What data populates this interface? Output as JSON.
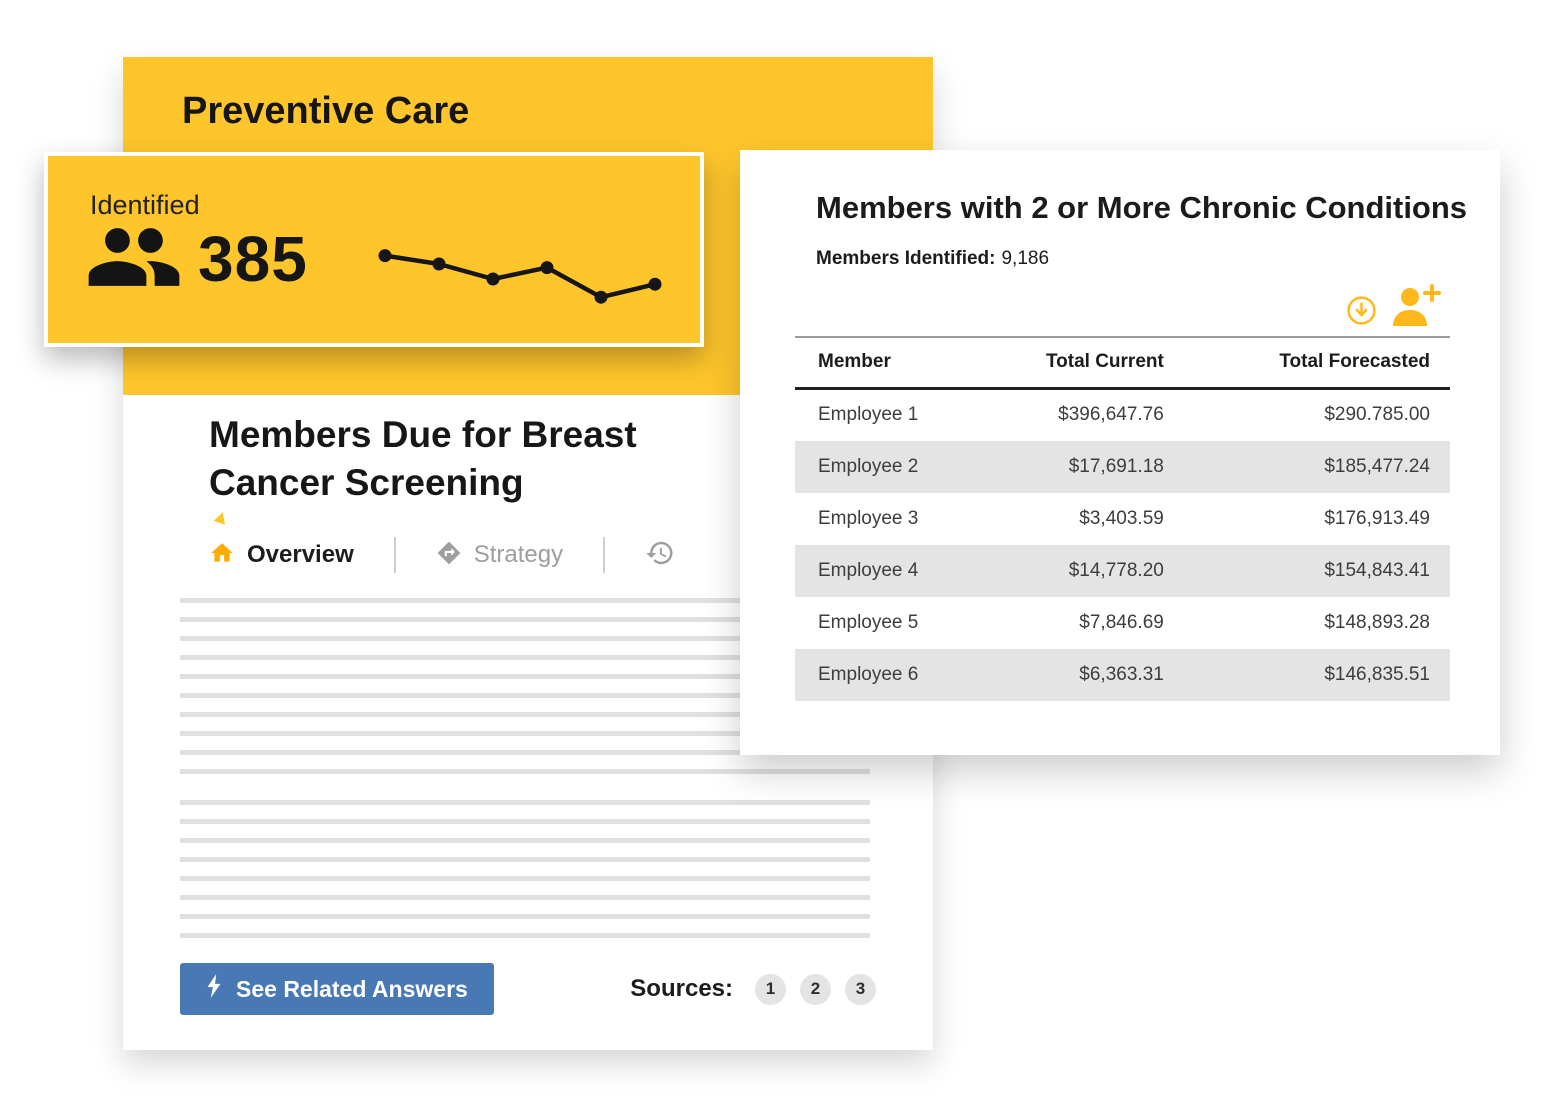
{
  "preventive_care": {
    "title": "Preventive Care"
  },
  "identified_card": {
    "label": "Identified",
    "value": "385",
    "sparkline": {
      "type": "line",
      "values": [
        93,
        77,
        48,
        70,
        13,
        38
      ]
    }
  },
  "document": {
    "title": "Members Due for Breast Cancer Screening",
    "tabs": [
      {
        "label": "Overview",
        "active": true
      },
      {
        "label": "Strategy",
        "active": false
      }
    ],
    "related_button": "See Related Answers",
    "sources_label": "Sources:",
    "sources": [
      "1",
      "2",
      "3"
    ]
  },
  "chronic_panel": {
    "title": "Members with 2 or More Chronic Conditions",
    "identified_label": "Members Identified:",
    "identified_value": "9,186",
    "table": {
      "columns": [
        "Member",
        "Total Current",
        "Total Forecasted"
      ],
      "rows": [
        [
          "Employee 1",
          "$396,647.76",
          "$290.785.00"
        ],
        [
          "Employee 2",
          "$17,691.18",
          "$185,477.24"
        ],
        [
          "Employee 3",
          "$3,403.59",
          "$176,913.49"
        ],
        [
          "Employee 4",
          "$14,778.20",
          "$154,843.41"
        ],
        [
          "Employee 5",
          "$7,846.69",
          "$148,893.28"
        ],
        [
          "Employee 6",
          "$6,363.31",
          "$146,835.51"
        ]
      ]
    }
  },
  "icons": {
    "members": "two-people silhouette",
    "overview": "home",
    "strategy": "diamond-direction-arrow",
    "history": "clock-restore",
    "download": "circled-down-arrow",
    "add_member": "person-plus",
    "related": "lightning-bolt"
  },
  "colors": {
    "yellow": "#FFC62B",
    "accent_yellow": "#FFB81C",
    "blue": "#4879B4"
  }
}
